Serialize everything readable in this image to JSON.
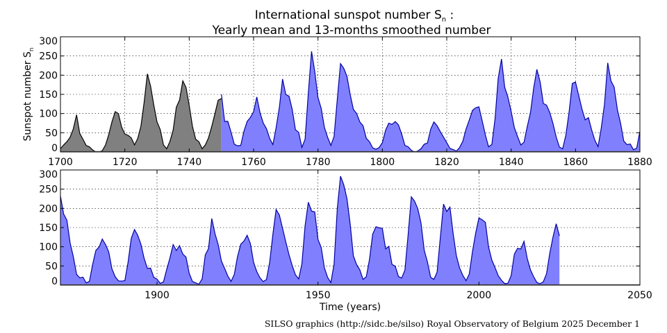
{
  "chart_data": {
    "type": "area",
    "title_line1": "International sunspot number S",
    "title_sub": "n",
    "title_suffix": " :",
    "title_line2": "Yearly mean and 13-months smoothed number",
    "ylabel": "Sunspot number S",
    "ylabel_sub": "n",
    "xlabel": "Time (years)",
    "footer": "SILSO graphics (http://sidc.be/silso)  Royal Observatory of Belgium  2025 December 1",
    "grid": true,
    "colors": {
      "yearly_fill": "#808080",
      "yearly_line": "#000000",
      "smoothed_fill": "#8080ff",
      "smoothed_line": "#0000a0"
    },
    "panels": [
      {
        "xlim": [
          1700,
          1880
        ],
        "ylim": [
          0,
          300
        ],
        "xticks": [
          1700,
          1720,
          1740,
          1760,
          1780,
          1800,
          1820,
          1840,
          1860,
          1880
        ],
        "yticks": [
          0,
          50,
          100,
          150,
          200,
          250,
          300
        ]
      },
      {
        "xlim": [
          1870,
          2050
        ],
        "ylim": [
          0,
          300
        ],
        "xticks": [
          1900,
          1950,
          2000,
          2050
        ],
        "yticks": [
          0,
          50,
          100,
          150,
          200,
          250,
          300
        ]
      }
    ],
    "series": [
      {
        "label": "yearly mean",
        "start_year": 1700,
        "values": [
          8.3,
          18.3,
          26.7,
          38.3,
          60.0,
          96.7,
          48.3,
          33.3,
          16.7,
          13.3,
          5.0,
          0,
          0,
          3.3,
          18.3,
          45.0,
          78.3,
          105.0,
          100.0,
          65.0,
          46.7,
          43.3,
          36.7,
          18.3,
          35.0,
          66.7,
          130.0,
          203.3,
          171.7,
          121.7,
          78.3,
          58.3,
          18.3,
          8.3,
          26.7,
          56.7,
          116.7,
          135.0,
          185.0,
          168.3,
          121.7,
          66.7,
          33.3,
          26.7,
          8.3,
          18.3,
          36.7,
          66.7,
          100.0,
          134.8,
          139.0
        ]
      },
      {
        "label": "13-months smoothed",
        "start_year": 1750,
        "values": [
          150,
          79.5,
          79.7,
          51.2,
          20.3,
          16.0,
          17.0,
          54.0,
          79.3,
          90.0,
          104.8,
          143.2,
          102.0,
          75.2,
          60.7,
          34.8,
          19.0,
          63.0,
          116.3,
          190,
          150,
          145,
          110.8,
          58.0,
          51.0,
          11.7,
          33.0,
          154.2,
          262,
          209.8,
          141.3,
          113.5,
          64.2,
          38.0,
          17.0,
          40.2,
          138.2,
          230.0,
          218.2,
          196.8,
          149.8,
          111.0,
          100.0,
          78.2,
          68.3,
          35.5,
          26.7,
          10.7,
          6.8,
          11.3,
          24.2,
          56.7,
          75.0,
          71.8,
          79.2,
          70.3,
          46.8,
          16.8,
          13.5,
          4.2,
          0,
          2.3,
          8.3,
          20.3,
          23.2,
          59.0,
          78,
          68.3,
          52.9,
          38.5,
          24.2,
          9.2,
          6.3,
          2.2,
          11.4,
          28.2,
          59.9,
          83.0,
          108.5,
          115.2,
          117.4,
          80.8,
          44.3,
          13.4,
          19.5,
          85.8,
          192.7,
          242,
          168.7,
          143.0,
          105.5,
          63.3,
          40.3,
          18.1,
          25.1,
          65.8,
          102.7,
          166.3,
          215,
          182.5,
          126.3,
          122.0,
          102.7,
          74.1,
          39.0,
          12.7,
          8.2,
          43.4,
          104.4,
          178.3,
          182.2,
          146.6,
          112.1,
          83.5,
          89.2,
          57.8,
          30.7,
          13.9,
          62.8,
          123.6,
          232.0,
          185.3,
          169.2,
          110.1,
          74.5,
          28.3,
          18.9,
          20.7,
          5.7,
          10.0,
          53.7,
          90.5,
          99.0,
          120,
          105.8,
          86.3,
          42.4,
          21.8,
          11.2,
          10.4,
          11.8,
          59.5,
          121.7,
          145.0,
          130.0,
          106.6,
          69.4,
          43.8,
          44.4,
          20.2,
          15.7,
          4.6,
          8.5,
          40.8,
          70.1,
          105.5,
          90.1,
          102.8,
          80.9,
          73.2,
          30.9,
          9.5,
          6.0,
          2.4,
          16.1,
          79.0,
          95.0,
          173.6,
          134.6,
          105.7,
          62.7,
          43.5,
          23.7,
          9.7,
          27.9,
          74.0,
          106.5,
          114.7,
          129.7,
          108.2,
          59.4,
          35.1,
          18.6,
          9.2,
          14.6,
          60.2,
          132.8,
          197.0,
          182.6,
          148.0,
          113.0,
          79.2,
          50.8,
          27.1,
          16.1,
          55.3,
          154.3,
          216.0,
          193.0,
          190.7,
          118.9,
          98.3,
          45.0,
          20.1,
          6.6,
          54.2,
          200.7,
          284.0,
          261.7,
          225.1,
          159.0,
          76.4,
          53.4,
          39.9,
          15.0,
          22.0,
          66.8,
          132.9,
          152.0,
          149.4,
          148.0,
          94.4,
          101.0,
          54.1,
          49.2,
          22.5,
          18.4,
          39.3,
          131.0,
          230.0,
          218.9,
          198.9,
          162.4,
          91.0,
          60.5,
          20.6,
          14.8,
          33.9,
          123.0,
          211.1,
          191.8,
          203.3,
          133.0,
          76.1,
          44.9,
          25.1,
          11.6,
          28.9,
          88.3,
          136.3,
          175.0,
          170.4,
          163.6,
          99.3,
          65.3,
          45.8,
          24.7,
          12.6,
          4.2,
          4.8,
          24.9,
          80.8,
          96.0,
          94.0,
          114.0,
          69.8,
          39.8,
          21.7,
          7.0,
          3.6,
          8.8,
          29.6,
          83.2,
          125.5,
          160.0,
          128.0
        ]
      }
    ]
  }
}
